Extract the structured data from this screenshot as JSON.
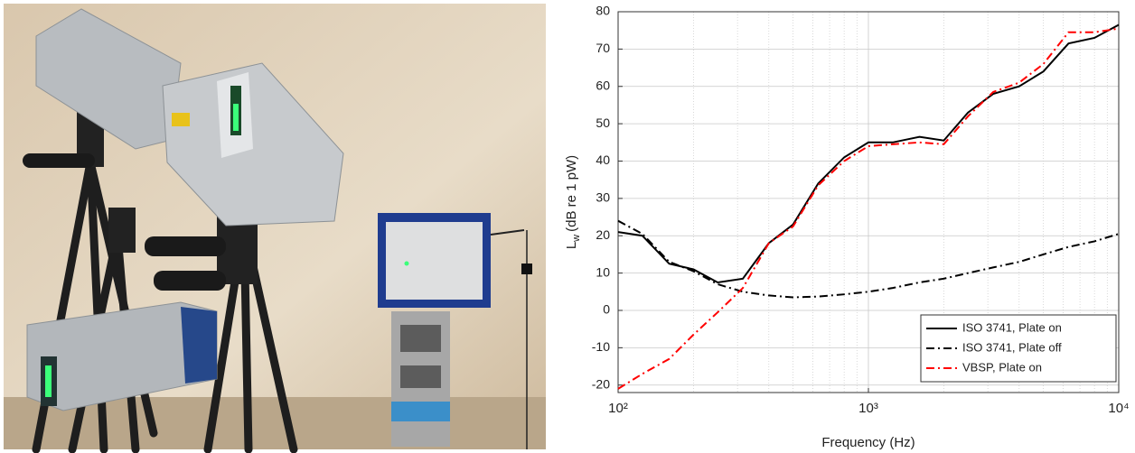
{
  "chart_data": {
    "type": "line",
    "xlabel": "Frequency (Hz)",
    "ylabel": [
      "L",
      "w",
      "(dB re 1 pW)"
    ],
    "x": [
      100,
      125,
      160,
      200,
      250,
      315,
      400,
      500,
      630,
      800,
      1000,
      1250,
      1600,
      2000,
      2500,
      3150,
      4000,
      5000,
      6300,
      8000,
      10000
    ],
    "series": [
      {
        "name": "ISO 3741, Plate on",
        "color": "#000000",
        "dash": "solid",
        "values": [
          21,
          20,
          12.5,
          11,
          7.5,
          8.5,
          18,
          23,
          34,
          41,
          45,
          45,
          46.5,
          45.5,
          53,
          58,
          60,
          64,
          71.5,
          73,
          76.5
        ]
      },
      {
        "name": "ISO 3741, Plate off",
        "color": "#000000",
        "dash": "dashdot",
        "values": [
          24,
          20.5,
          13,
          10.5,
          7,
          5,
          4,
          3.5,
          3.7,
          4.3,
          5,
          6,
          7.5,
          8.5,
          10,
          11.5,
          13,
          15,
          17,
          18.5,
          20.5
        ]
      },
      {
        "name": "VBSP, Plate on",
        "color": "#ff0000",
        "dash": "dashdot",
        "values": [
          -21,
          -17,
          -13,
          -6.5,
          -0.5,
          6,
          18,
          22.5,
          33.5,
          40,
          44,
          44.5,
          45,
          44.5,
          52,
          58.5,
          61,
          66,
          74.5,
          74.5,
          75.5
        ]
      }
    ],
    "xscale": "log",
    "xlim": [
      100,
      10000
    ],
    "xticks": [
      {
        "value": 100,
        "label": "10²"
      },
      {
        "value": 1000,
        "label": "10³"
      },
      {
        "value": 10000,
        "label": "10⁴"
      }
    ],
    "ylim": [
      -22,
      80
    ],
    "yticks": [
      -20,
      -10,
      0,
      10,
      20,
      30,
      40,
      50,
      60,
      70,
      80
    ],
    "grid": true,
    "legend": "lower-right"
  }
}
